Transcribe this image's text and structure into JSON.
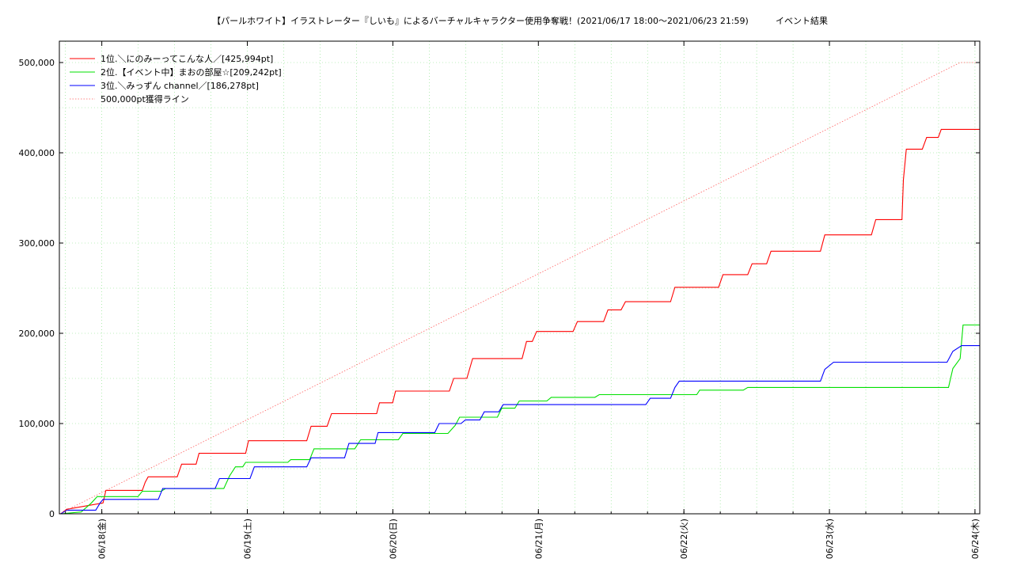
{
  "chart_data": {
    "type": "line",
    "title": "【パールホワイト】イラストレーター『しいも』によるバーチャルキャラクター使用争奪戦！(2021/06/17 18:00〜2021/06/23 21:59)",
    "subtitle": "イベント結果",
    "xlabel": "",
    "ylabel": "",
    "x_tick_labels": [
      "06/18(金)",
      "06/19(土)",
      "06/20(日)",
      "06/21(月)",
      "06/22(火)",
      "06/23(水)",
      "06/24(木)"
    ],
    "x_tick_positions": [
      0.2917,
      1.2917,
      2.2917,
      3.2917,
      4.2917,
      5.2917,
      6.2917
    ],
    "xlim": [
      0,
      6.3247
    ],
    "ylim": [
      0,
      500000
    ],
    "y_ticks": [
      0,
      100000,
      200000,
      300000,
      400000,
      500000
    ],
    "y_tick_labels": [
      "0",
      "100,000",
      "200,000",
      "300,000",
      "400,000",
      "500,000"
    ],
    "x_units": "days since 2021/06/17 18:00",
    "grid": true,
    "legend_position": "top-left",
    "colors": {
      "series1": "#ff0000",
      "series2": "#00e000",
      "series3": "#0000ff",
      "target": "#ff6060",
      "grid": "#80e080",
      "axis": "#000000"
    },
    "series": [
      {
        "name": "1位.＼にのみーってこんな人／[425,994pt]",
        "color": "#ff0000",
        "style": "step",
        "points": [
          [
            0.01,
            0
          ],
          [
            0.05,
            5000
          ],
          [
            0.3,
            12000
          ],
          [
            0.32,
            26000
          ],
          [
            0.57,
            26000
          ],
          [
            0.59,
            35000
          ],
          [
            0.61,
            41000
          ],
          [
            0.81,
            41000
          ],
          [
            0.84,
            55000
          ],
          [
            0.94,
            55000
          ],
          [
            0.96,
            67000
          ],
          [
            1.28,
            67000
          ],
          [
            1.3,
            81000
          ],
          [
            1.7,
            81000
          ],
          [
            1.73,
            97000
          ],
          [
            1.84,
            97000
          ],
          [
            1.87,
            111000
          ],
          [
            2.18,
            111000
          ],
          [
            2.2,
            123000
          ],
          [
            2.29,
            123000
          ],
          [
            2.31,
            136000
          ],
          [
            2.68,
            136000
          ],
          [
            2.71,
            150000
          ],
          [
            2.8,
            150000
          ],
          [
            2.84,
            172000
          ],
          [
            3.18,
            172000
          ],
          [
            3.21,
            191000
          ],
          [
            3.25,
            191000
          ],
          [
            3.28,
            202000
          ],
          [
            3.53,
            202000
          ],
          [
            3.56,
            213000
          ],
          [
            3.74,
            213000
          ],
          [
            3.77,
            226000
          ],
          [
            3.86,
            226000
          ],
          [
            3.89,
            235000
          ],
          [
            4.2,
            235000
          ],
          [
            4.23,
            251000
          ],
          [
            4.53,
            251000
          ],
          [
            4.56,
            265000
          ],
          [
            4.73,
            265000
          ],
          [
            4.76,
            277000
          ],
          [
            4.86,
            277000
          ],
          [
            4.89,
            291000
          ],
          [
            5.23,
            291000
          ],
          [
            5.26,
            309000
          ],
          [
            5.58,
            309000
          ],
          [
            5.61,
            326000
          ],
          [
            5.79,
            326000
          ],
          [
            5.8,
            370000
          ],
          [
            5.82,
            404000
          ],
          [
            5.93,
            404000
          ],
          [
            5.96,
            417000
          ],
          [
            6.04,
            417000
          ],
          [
            6.06,
            425994
          ],
          [
            6.3247,
            425994
          ]
        ]
      },
      {
        "name": "2位.【イベント中】まおの部屋☆[209,242pt]",
        "color": "#00e000",
        "style": "step",
        "points": [
          [
            0.01,
            0
          ],
          [
            0.15,
            2000
          ],
          [
            0.22,
            12000
          ],
          [
            0.26,
            19000
          ],
          [
            0.54,
            19000
          ],
          [
            0.57,
            25000
          ],
          [
            0.7,
            25000
          ],
          [
            0.73,
            28000
          ],
          [
            1.13,
            28000
          ],
          [
            1.17,
            42000
          ],
          [
            1.21,
            52000
          ],
          [
            1.26,
            52000
          ],
          [
            1.28,
            57000
          ],
          [
            1.57,
            57000
          ],
          [
            1.59,
            60000
          ],
          [
            1.72,
            60000
          ],
          [
            1.75,
            72000
          ],
          [
            2.03,
            72000
          ],
          [
            2.07,
            82000
          ],
          [
            2.33,
            82000
          ],
          [
            2.36,
            89000
          ],
          [
            2.67,
            89000
          ],
          [
            2.72,
            98000
          ],
          [
            2.75,
            107000
          ],
          [
            3.01,
            107000
          ],
          [
            3.04,
            117000
          ],
          [
            3.13,
            117000
          ],
          [
            3.16,
            125000
          ],
          [
            3.35,
            125000
          ],
          [
            3.38,
            129000
          ],
          [
            3.68,
            129000
          ],
          [
            3.71,
            132000
          ],
          [
            4.38,
            132000
          ],
          [
            4.4,
            137000
          ],
          [
            4.7,
            137000
          ],
          [
            4.73,
            140000
          ],
          [
            5.93,
            140000
          ],
          [
            6.11,
            140000
          ],
          [
            6.14,
            161000
          ],
          [
            6.19,
            172000
          ],
          [
            6.21,
            209242
          ],
          [
            6.3247,
            209242
          ]
        ]
      },
      {
        "name": "3位.＼みっずん channel／[186,278pt]",
        "color": "#0000ff",
        "style": "step",
        "points": [
          [
            0.01,
            0
          ],
          [
            0.05,
            4000
          ],
          [
            0.25,
            4000
          ],
          [
            0.28,
            12000
          ],
          [
            0.3,
            16000
          ],
          [
            0.68,
            16000
          ],
          [
            0.71,
            28000
          ],
          [
            1.07,
            28000
          ],
          [
            1.1,
            39000
          ],
          [
            1.31,
            39000
          ],
          [
            1.34,
            52000
          ],
          [
            1.7,
            52000
          ],
          [
            1.73,
            62000
          ],
          [
            1.96,
            62000
          ],
          [
            1.99,
            78000
          ],
          [
            2.17,
            78000
          ],
          [
            2.19,
            90000
          ],
          [
            2.58,
            90000
          ],
          [
            2.61,
            100000
          ],
          [
            2.76,
            100000
          ],
          [
            2.79,
            104000
          ],
          [
            2.89,
            104000
          ],
          [
            2.92,
            113000
          ],
          [
            3.02,
            113000
          ],
          [
            3.05,
            121000
          ],
          [
            3.68,
            121000
          ],
          [
            4.03,
            121000
          ],
          [
            4.06,
            128000
          ],
          [
            4.2,
            128000
          ],
          [
            4.23,
            140000
          ],
          [
            4.26,
            147000
          ],
          [
            5.23,
            147000
          ],
          [
            5.26,
            160000
          ],
          [
            5.32,
            168000
          ],
          [
            6.1,
            168000
          ],
          [
            6.14,
            180000
          ],
          [
            6.2,
            186278
          ],
          [
            6.3247,
            186278
          ]
        ]
      },
      {
        "name": "500,000pt獲得ライン",
        "color": "#ff6060",
        "style": "dotted",
        "points": [
          [
            0,
            0
          ],
          [
            6.19,
            500000
          ],
          [
            6.3247,
            500000
          ]
        ]
      }
    ]
  }
}
